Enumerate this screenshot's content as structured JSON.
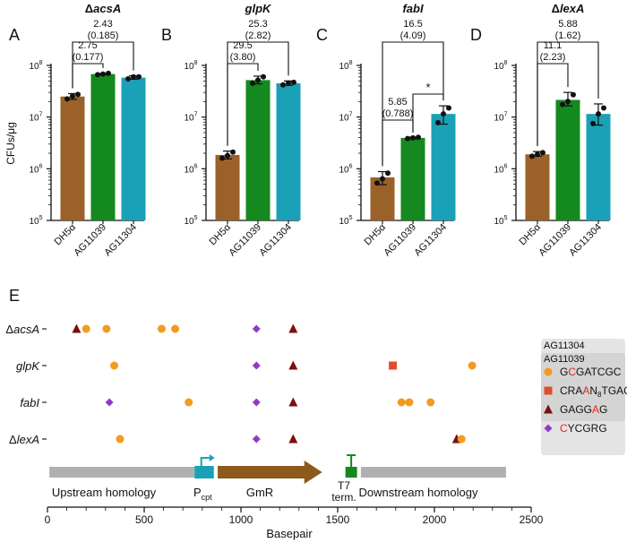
{
  "panel_labels": [
    "A",
    "B",
    "C",
    "D",
    "E"
  ],
  "colors": {
    "DH5α": "#9a6228",
    "AG11039": "#14891f",
    "AG11304": "#1aa1b8",
    "legend_red": "#e8261c",
    "circle_orange": "#f29a22",
    "square_red": "#e04e2e",
    "triangle_darkred": "#7a1010",
    "diamond_purple": "#8f3cc4",
    "homology_gray": "#b0b0b0",
    "gmr_brown": "#8b5a1c",
    "pcpt_teal": "#1aa1b8",
    "t7_green": "#14891f",
    "legend_bg": "#e4e4e4"
  },
  "chart_data": [
    {
      "type": "bar",
      "panel": "A",
      "title": "ΔacsA",
      "title_italic_part": "acsA",
      "ylabel": "CFUs/μg",
      "yscale": "log",
      "ylim": [
        100000,
        100000000
      ],
      "ytick_mantissa": [
        "10",
        "10",
        "10",
        "10"
      ],
      "ytick_exp": [
        "5",
        "6",
        "7",
        "8"
      ],
      "categories": [
        "DH5α",
        "AG11039",
        "AG11304"
      ],
      "values": [
        25000000,
        68000000,
        58000000
      ],
      "errors_low": [
        22000000,
        66000000,
        54000000
      ],
      "errors_high": [
        28500000,
        70000000,
        63000000
      ],
      "points": [
        [
          22500000,
          25500000,
          27500000
        ],
        [
          66000000,
          68000000,
          70000000
        ],
        [
          55000000,
          60000000,
          60000000
        ]
      ],
      "comparisons": [
        {
          "from": 0,
          "to": 1,
          "label": "2.75",
          "sub": "(0.177)"
        },
        {
          "from": 0,
          "to": 2,
          "label": "2.43",
          "sub": "(0.185)"
        }
      ]
    },
    {
      "type": "bar",
      "panel": "B",
      "title": "glpK",
      "title_italic_part": "glpK",
      "yscale": "log",
      "ylim": [
        100000,
        100000000
      ],
      "ytick_mantissa": [
        "10",
        "10",
        "10",
        "10"
      ],
      "ytick_exp": [
        "5",
        "6",
        "7",
        "8"
      ],
      "categories": [
        "DH5α",
        "AG11039",
        "AG11304"
      ],
      "values": [
        1850000,
        52000000,
        45000000
      ],
      "errors_low": [
        1550000,
        44000000,
        41000000
      ],
      "errors_high": [
        2200000,
        62000000,
        50000000
      ],
      "points": [
        [
          1600000,
          1800000,
          2100000
        ],
        [
          45000000,
          52000000,
          60000000
        ],
        [
          42000000,
          46000000,
          47000000
        ]
      ],
      "comparisons": [
        {
          "from": 0,
          "to": 1,
          "label": "29.5",
          "sub": "(3.80)"
        },
        {
          "from": 0,
          "to": 2,
          "label": "25.3",
          "sub": "(2.82)"
        }
      ]
    },
    {
      "type": "bar",
      "panel": "C",
      "title": "fabI",
      "title_italic_part": "fabI",
      "yscale": "log",
      "ylim": [
        100000,
        100000000
      ],
      "ytick_mantissa": [
        "10",
        "10",
        "10",
        "10"
      ],
      "ytick_exp": [
        "5",
        "6",
        "7",
        "8"
      ],
      "categories": [
        "DH5α",
        "AG11039",
        "AG11304"
      ],
      "values": [
        680000,
        3950000,
        11500000
      ],
      "errors_low": [
        490000,
        3800000,
        7300000
      ],
      "errors_high": [
        880000,
        4100000,
        16500000
      ],
      "points": [
        [
          530000,
          640000,
          820000
        ],
        [
          3850000,
          3950000,
          4050000
        ],
        [
          7800000,
          11500000,
          15000000
        ]
      ],
      "comparisons": [
        {
          "from": 0,
          "to": 1,
          "label": "5.85",
          "sub": "(0.788)"
        },
        {
          "from": 1,
          "to": 2,
          "label": "*",
          "sub": ""
        },
        {
          "from": 0,
          "to": 2,
          "label": "16.5",
          "sub": "(4.09)"
        }
      ]
    },
    {
      "type": "bar",
      "panel": "D",
      "title": "ΔlexA",
      "title_italic_part": "lexA",
      "yscale": "log",
      "ylim": [
        100000,
        100000000
      ],
      "ytick_mantissa": [
        "10",
        "10",
        "10",
        "10"
      ],
      "ytick_exp": [
        "5",
        "6",
        "7",
        "8"
      ],
      "categories": [
        "DH5α",
        "AG11039",
        "AG11304"
      ],
      "values": [
        1900000,
        21500000,
        11500000
      ],
      "errors_low": [
        1750000,
        16500000,
        7000000
      ],
      "errors_high": [
        2150000,
        30000000,
        18000000
      ],
      "points": [
        [
          1750000,
          1900000,
          2050000
        ],
        [
          17500000,
          20000000,
          27000000
        ],
        [
          7500000,
          11500000,
          15000000
        ]
      ],
      "comparisons": [
        {
          "from": 0,
          "to": 1,
          "label": "11.1",
          "sub": "(2.23)"
        },
        {
          "from": 0,
          "to": 2,
          "label": "5.88",
          "sub": "(1.62)"
        }
      ]
    },
    {
      "type": "scatter",
      "panel": "E",
      "xlabel": "Basepair",
      "xlim": [
        0,
        2500
      ],
      "xticks": [
        0,
        500,
        1000,
        1500,
        2000,
        2500
      ],
      "rows": [
        {
          "label": "ΔacsA",
          "prefix": "Δ",
          "italic": "acsA",
          "markers": [
            {
              "x": 150,
              "s": "triangle"
            },
            {
              "x": 200,
              "s": "circle"
            },
            {
              "x": 305,
              "s": "circle"
            },
            {
              "x": 590,
              "s": "circle"
            },
            {
              "x": 660,
              "s": "circle"
            },
            {
              "x": 1080,
              "s": "diamond"
            },
            {
              "x": 1270,
              "s": "triangle"
            }
          ]
        },
        {
          "label": "glpK",
          "prefix": "",
          "italic": "glpK",
          "markers": [
            {
              "x": 345,
              "s": "circle"
            },
            {
              "x": 1080,
              "s": "diamond"
            },
            {
              "x": 1270,
              "s": "triangle"
            },
            {
              "x": 1785,
              "s": "square"
            },
            {
              "x": 2195,
              "s": "circle"
            }
          ]
        },
        {
          "label": "fabI",
          "prefix": "",
          "italic": "fabI",
          "markers": [
            {
              "x": 320,
              "s": "diamond"
            },
            {
              "x": 730,
              "s": "circle"
            },
            {
              "x": 1080,
              "s": "diamond"
            },
            {
              "x": 1270,
              "s": "triangle"
            },
            {
              "x": 1830,
              "s": "circle"
            },
            {
              "x": 1870,
              "s": "circle"
            },
            {
              "x": 1980,
              "s": "circle"
            }
          ]
        },
        {
          "label": "ΔlexA",
          "prefix": "Δ",
          "italic": "lexA",
          "markers": [
            {
              "x": 375,
              "s": "circle"
            },
            {
              "x": 1080,
              "s": "diamond"
            },
            {
              "x": 1270,
              "s": "triangle"
            },
            {
              "x": 2115,
              "s": "triangle"
            },
            {
              "x": 2140,
              "s": "circle"
            }
          ]
        }
      ],
      "map_segments": [
        {
          "name": "Upstream homology",
          "start": 10,
          "end": 760,
          "kind": "bar",
          "color": "homology_gray"
        },
        {
          "name": "Pcpt",
          "start": 760,
          "end": 860,
          "kind": "promoter",
          "color": "pcpt_teal"
        },
        {
          "name": "GmR",
          "start": 880,
          "end": 1420,
          "kind": "arrow",
          "color": "gmr_brown"
        },
        {
          "name": "T7 term.",
          "start": 1540,
          "end": 1600,
          "kind": "terminator",
          "color": "t7_green"
        },
        {
          "name": "Downstream homology",
          "start": 1620,
          "end": 2370,
          "kind": "bar",
          "color": "homology_gray"
        }
      ],
      "map_labels": {
        "upstream": "Upstream homology",
        "pcpt_main": "P",
        "pcpt_sub": "cpt",
        "gmr": "GmR",
        "t7_line1": "T7",
        "t7_line2": "term.",
        "downstream": "Downstream homology"
      },
      "legend": {
        "header1": "AG11304",
        "header2": "AG11039",
        "entries": [
          {
            "shape": "circle",
            "parts": [
              [
                "G",
                ""
              ],
              [
                "C",
                "red"
              ],
              [
                "GATCGC",
                ""
              ]
            ]
          },
          {
            "shape": "square",
            "parts": [
              [
                "CRA",
                ""
              ],
              [
                "A",
                "red"
              ],
              [
                "N",
                ""
              ],
              [
                "8",
                "sub"
              ],
              [
                "TGAC",
                ""
              ]
            ]
          },
          {
            "shape": "triangle",
            "parts": [
              [
                "GAGG",
                ""
              ],
              [
                "A",
                "red"
              ],
              [
                "G",
                ""
              ]
            ]
          },
          {
            "shape": "diamond",
            "parts": [
              [
                "C",
                "red"
              ],
              [
                "YCGRG",
                ""
              ]
            ]
          }
        ]
      }
    }
  ]
}
